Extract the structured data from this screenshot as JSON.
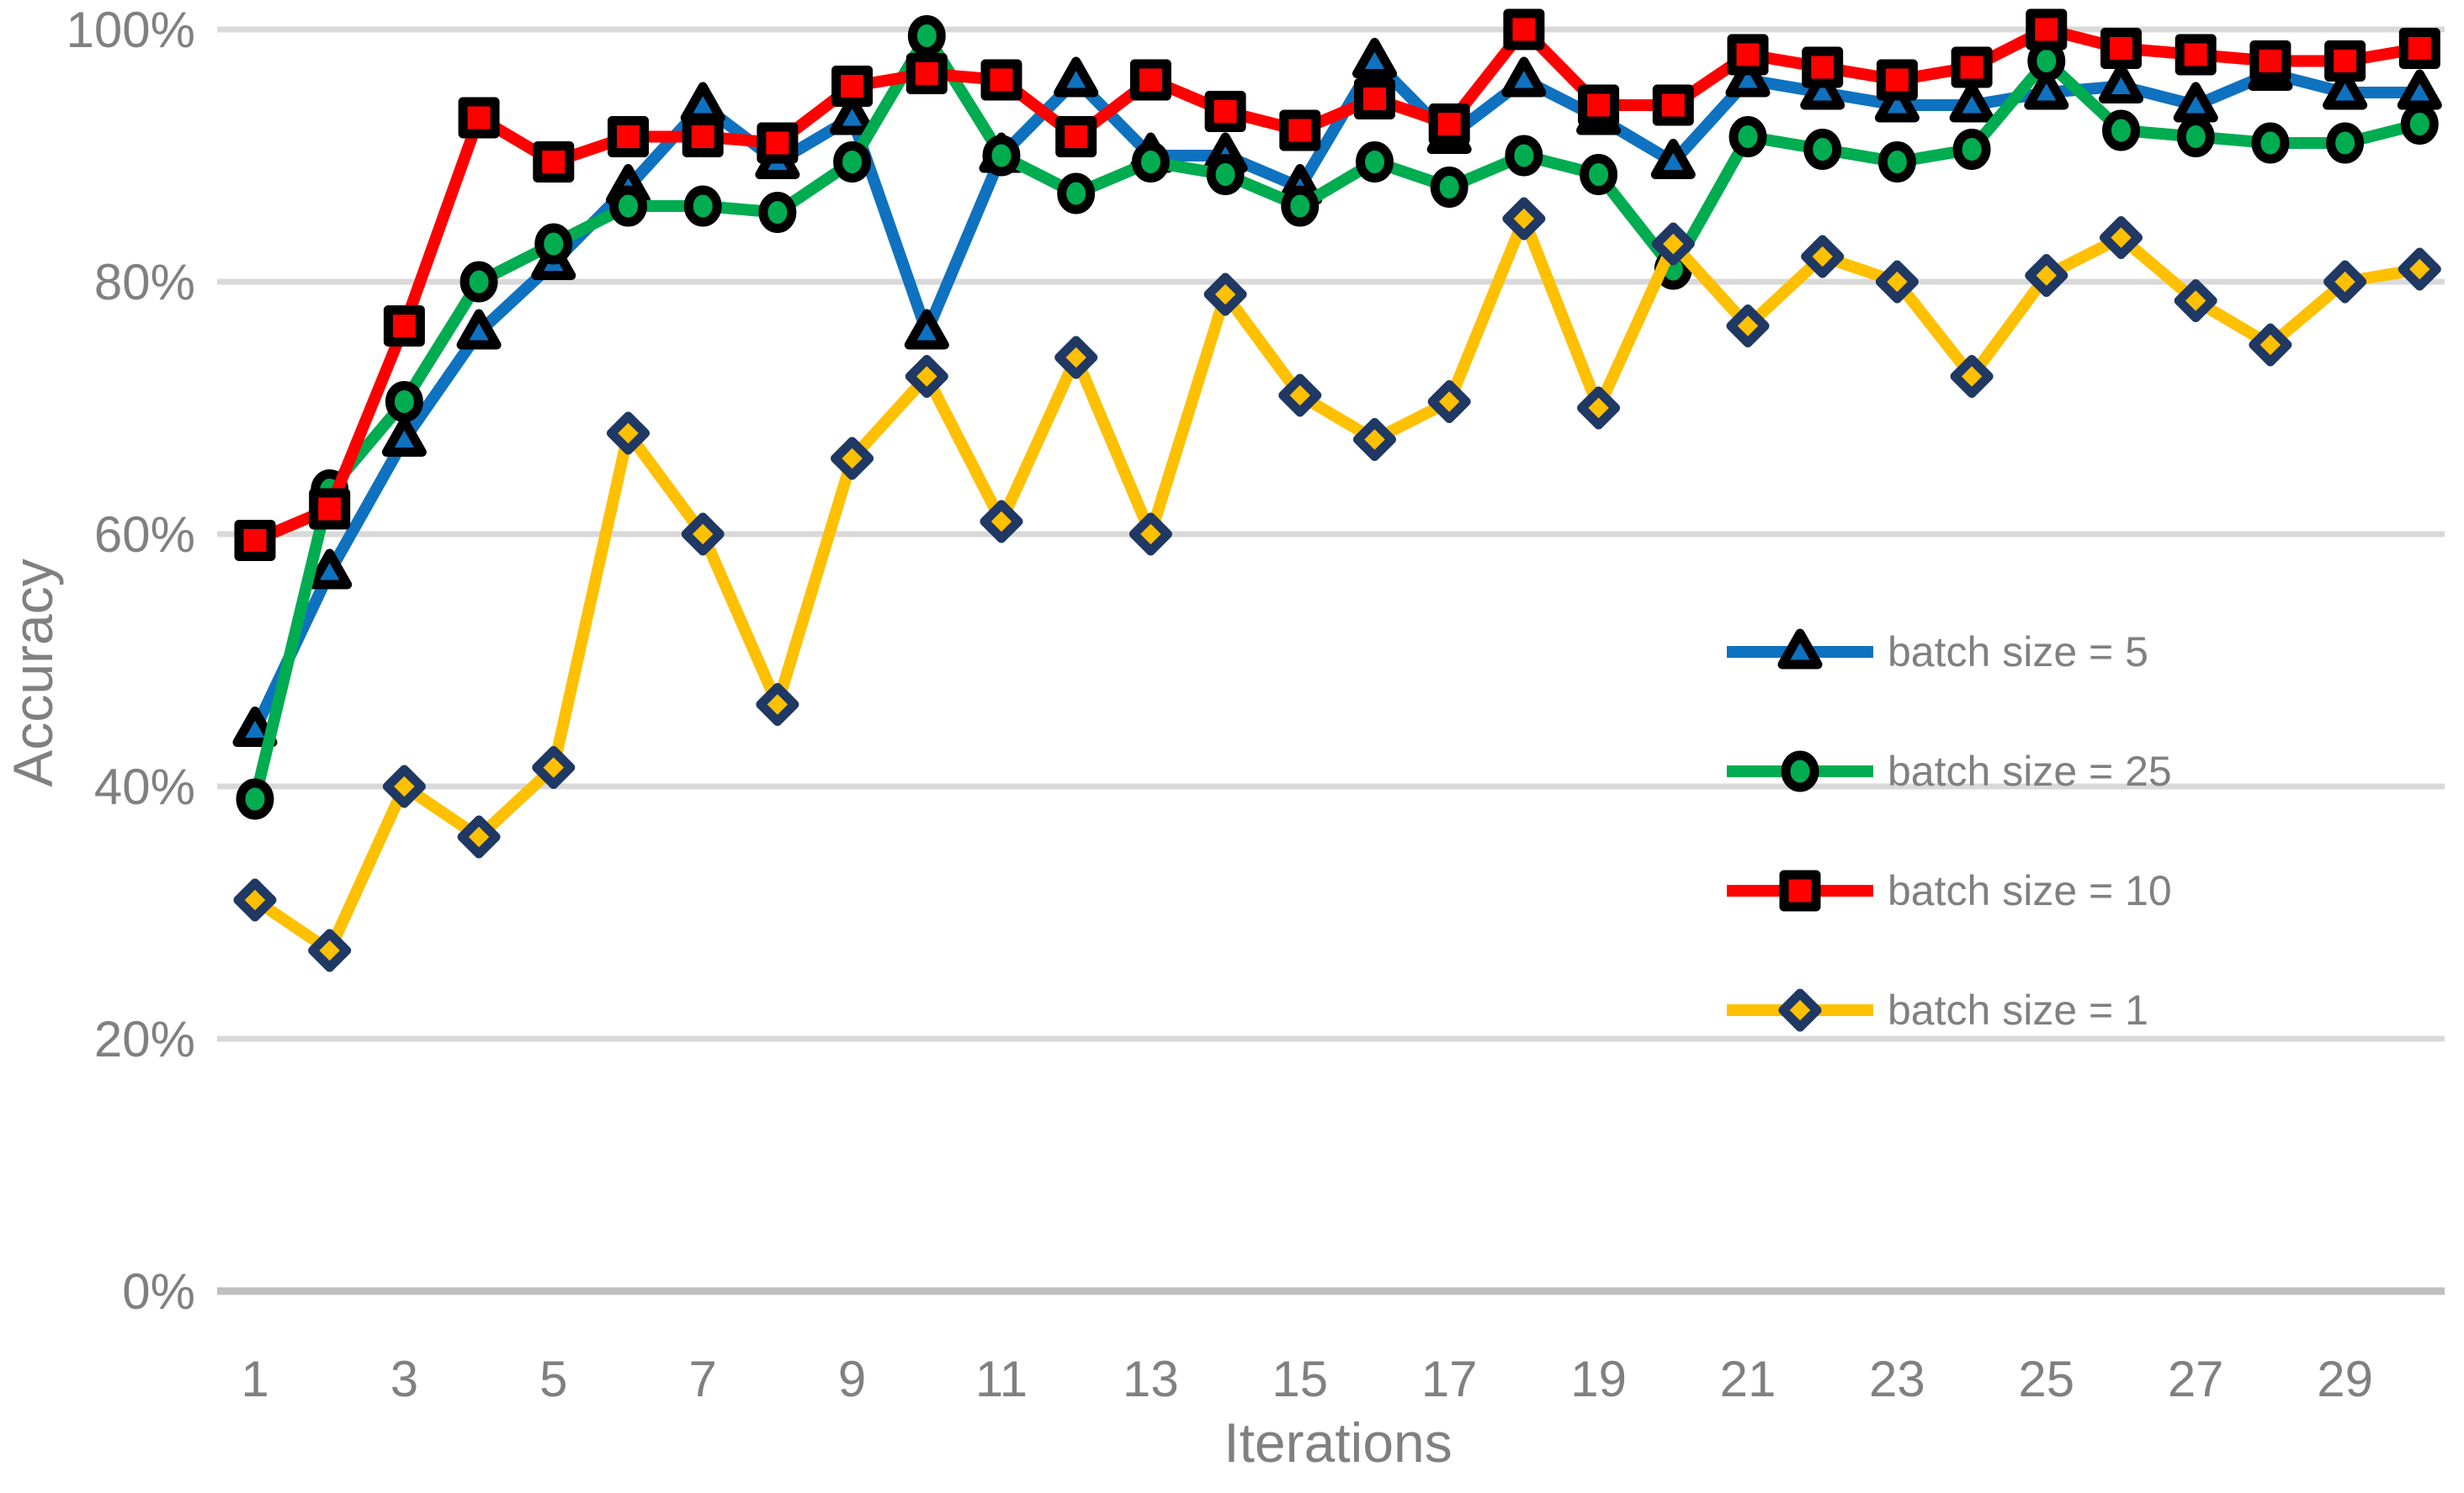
{
  "chart_data": {
    "type": "line",
    "title": "",
    "xlabel": "Iterations",
    "ylabel": "Accuracy",
    "x": [
      1,
      2,
      3,
      4,
      5,
      6,
      7,
      8,
      9,
      10,
      11,
      12,
      13,
      14,
      15,
      16,
      17,
      18,
      19,
      20,
      21,
      22,
      23,
      24,
      25,
      26,
      27,
      28,
      29,
      30
    ],
    "x_ticks": [
      "1",
      "3",
      "5",
      "7",
      "9",
      "11",
      "13",
      "15",
      "17",
      "19",
      "21",
      "23",
      "25",
      "27",
      "29"
    ],
    "y_ticks": [
      "0%",
      "20%",
      "40%",
      "60%",
      "80%",
      "100%"
    ],
    "y_tick_values": [
      0,
      20,
      40,
      60,
      80,
      100
    ],
    "ylim": [
      0,
      100
    ],
    "xlim": [
      1,
      30
    ],
    "grid": "horizontal",
    "legend_position": "right-center",
    "series": [
      {
        "name": "batch size = 5",
        "color": "#0E72C0",
        "marker": "triangle",
        "marker_outline": "#000000",
        "values": [
          44.5,
          57,
          67.5,
          76,
          81.5,
          87.5,
          94,
          89.5,
          93,
          76,
          90,
          96,
          90,
          90,
          87.5,
          97.5,
          91.5,
          96,
          93,
          89.5,
          96,
          95,
          94,
          94,
          95,
          95.5,
          94,
          96.5,
          95,
          95
        ]
      },
      {
        "name": "batch size = 25",
        "color": "#00AC50",
        "marker": "circle",
        "marker_outline": "#000000",
        "values": [
          39,
          63.5,
          70.5,
          80,
          83,
          86,
          86,
          85.5,
          89.5,
          99.5,
          90,
          87,
          89.5,
          88.5,
          86,
          89.5,
          87.5,
          90,
          88.5,
          81,
          91.5,
          90.5,
          89.5,
          90.5,
          97.5,
          92,
          91.5,
          91,
          91,
          92.5
        ]
      },
      {
        "name": "batch size = 10",
        "color": "#FF0000",
        "marker": "square",
        "marker_outline": "#000000",
        "values": [
          59.5,
          62,
          76.5,
          93,
          89.5,
          91.5,
          91.5,
          91,
          95.5,
          96.5,
          96,
          91.5,
          96,
          93.5,
          92,
          94.5,
          92.5,
          100,
          94,
          94,
          98,
          97,
          96,
          97,
          100,
          98.5,
          98,
          97.5,
          97.5,
          98.5
        ]
      },
      {
        "name": "batch size = 1",
        "color": "#FFC000",
        "marker": "diamond",
        "marker_outline": "#1F3864",
        "values": [
          31,
          27,
          40,
          36,
          41.5,
          68,
          60,
          46.5,
          66,
          72.5,
          61,
          74,
          60,
          79,
          71,
          67.5,
          70.5,
          85,
          70,
          83,
          76.5,
          82,
          80,
          72.5,
          80.5,
          83.5,
          78.5,
          75,
          80,
          81
        ]
      }
    ],
    "colors": {
      "gridline": "#D9D9D9",
      "axis_line": "#BFBFBF",
      "text": "#808080",
      "background": "#FFFFFF"
    }
  }
}
